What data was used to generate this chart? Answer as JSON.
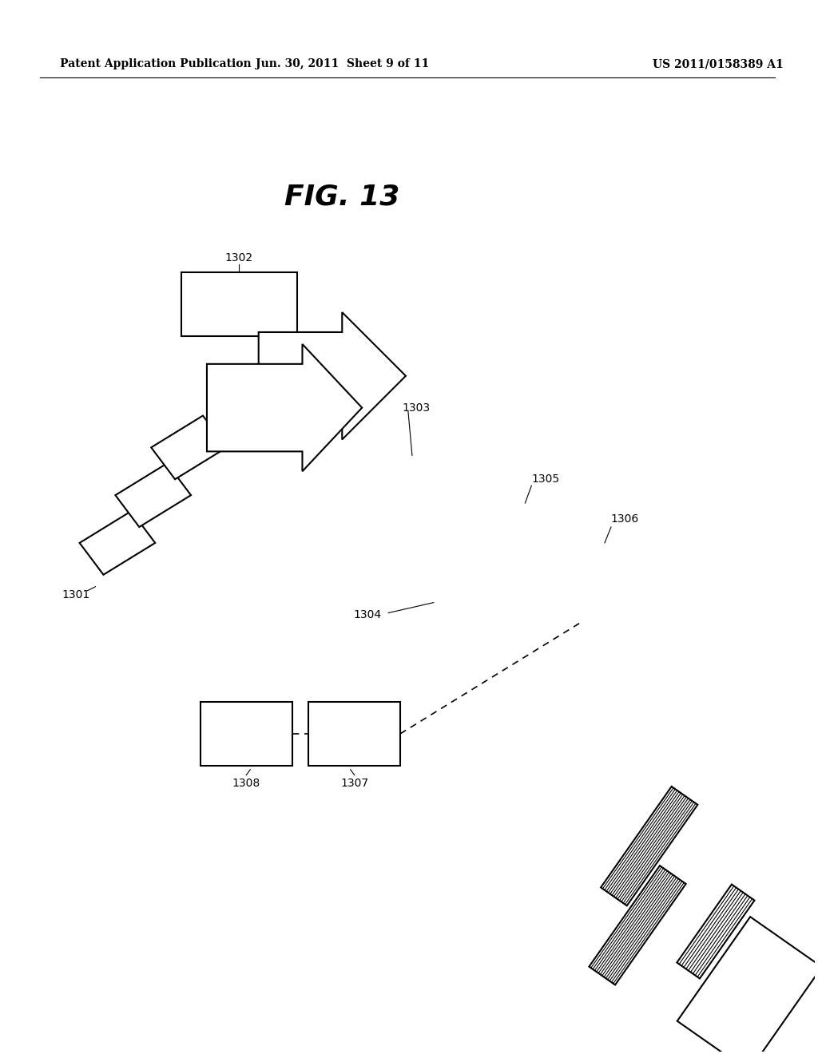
{
  "title": "FIG. 13",
  "header_left": "Patent Application Publication",
  "header_center": "Jun. 30, 2011  Sheet 9 of 11",
  "header_right": "US 2011/0158389 A1",
  "background_color": "#ffffff",
  "text_color": "#000000",
  "label_1301": "1301",
  "label_1302": "1302",
  "label_1303": "1303",
  "label_1304": "1304",
  "label_1305": "1305",
  "label_1306": "1306",
  "label_1307": "1307",
  "label_1308": "1308"
}
